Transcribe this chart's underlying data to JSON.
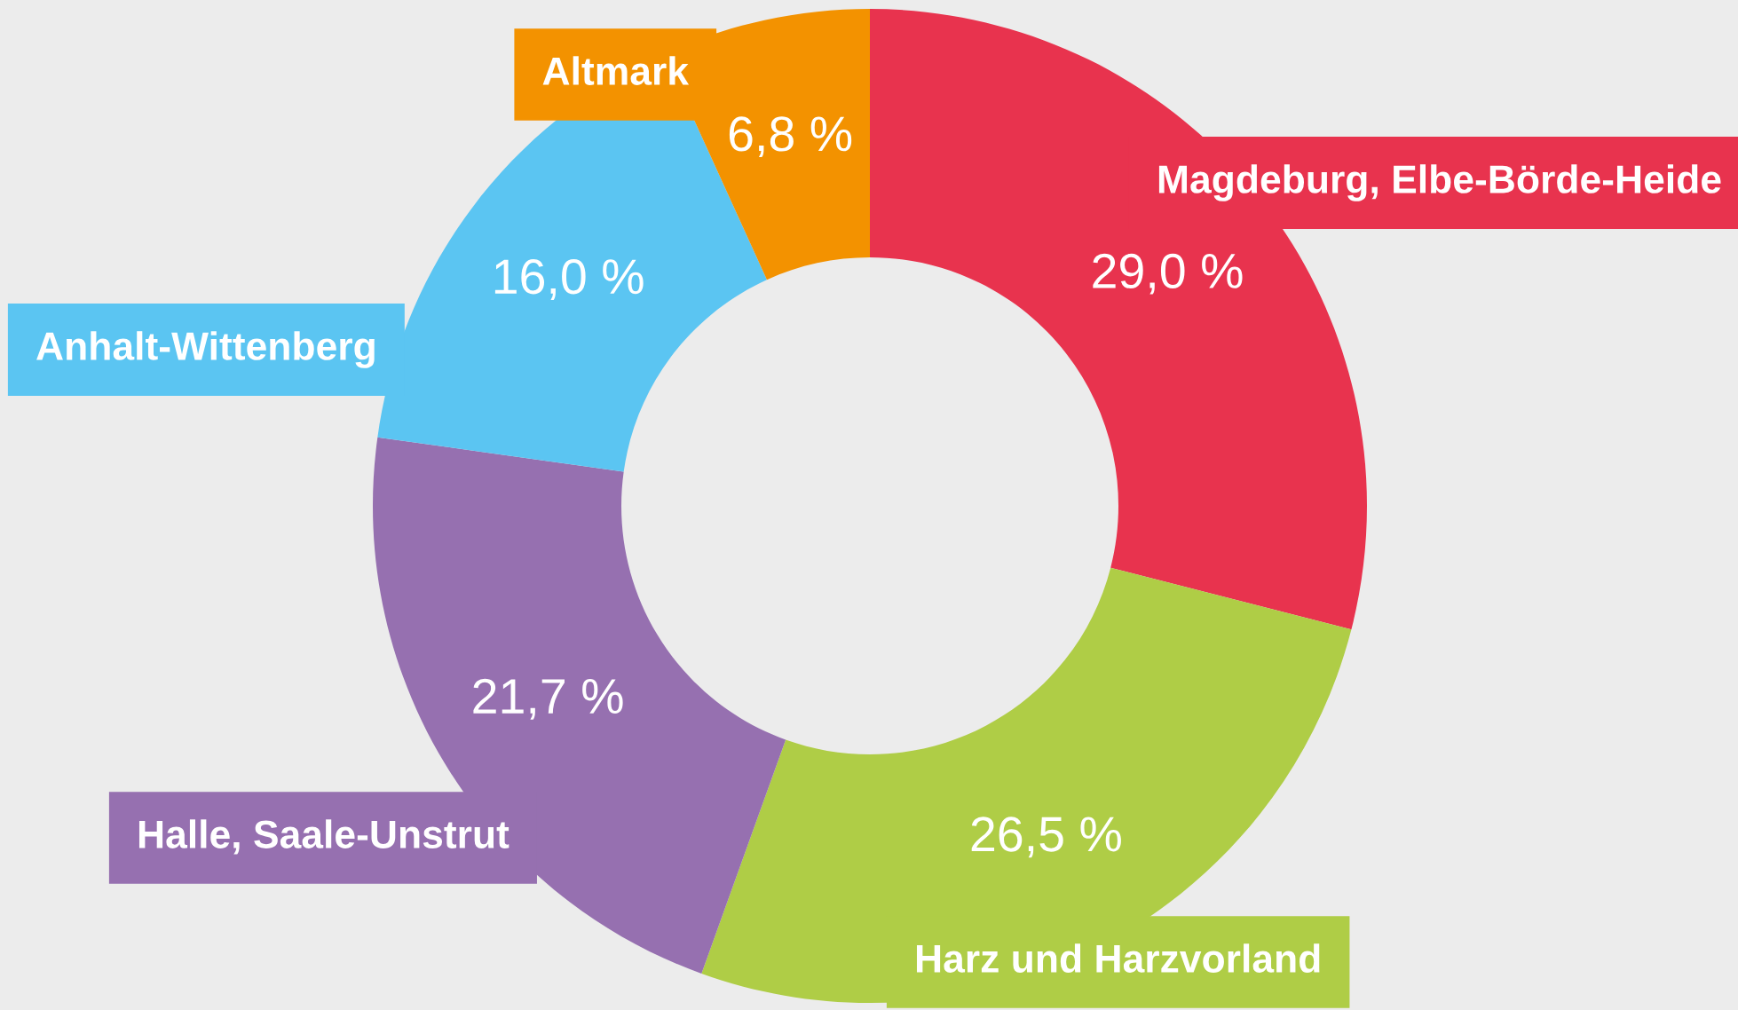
{
  "chart_data": {
    "type": "donut",
    "categories": [
      "Magdeburg, Elbe-Börde-Heide",
      "Harz und Harzvorland",
      "Halle, Saale-Unstrut",
      "Anhalt-Wittenberg",
      "Altmark"
    ],
    "values": [
      29.0,
      26.5,
      21.7,
      16.0,
      6.8
    ],
    "value_labels": [
      "29,0 %",
      "26,5 %",
      "21,7 %",
      "16,0 %",
      "6,8 %"
    ],
    "colors": [
      "#e8334e",
      "#afcd46",
      "#9670b0",
      "#5bc5f2",
      "#f39200"
    ],
    "legend": false
  }
}
